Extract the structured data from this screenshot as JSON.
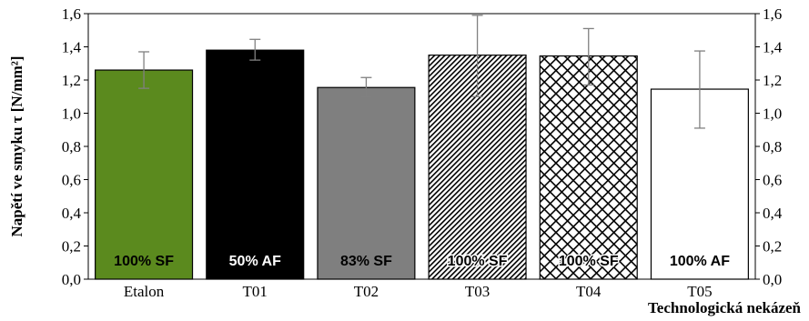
{
  "chart_data": {
    "type": "bar",
    "categories": [
      "Etalon",
      "T01",
      "T02",
      "T03",
      "T04",
      "T05"
    ],
    "values": [
      1.26,
      1.38,
      1.155,
      1.35,
      1.345,
      1.145
    ],
    "error_low": [
      1.15,
      1.32,
      1.1,
      1.1,
      1.17,
      0.91
    ],
    "error_high": [
      1.37,
      1.445,
      1.215,
      1.59,
      1.51,
      1.375
    ],
    "bar_labels": [
      "100% SF",
      "50% AF",
      "83% SF",
      "100% SF",
      "100% SF",
      "100% AF"
    ],
    "bar_fills": [
      "green",
      "black",
      "gray",
      "diagonal-hatch",
      "crosshatch",
      "white"
    ],
    "colors": {
      "green": "#5b8a1e",
      "black": "#000000",
      "gray": "#7f7f7f",
      "white": "#ffffff",
      "error_bar": "#808080"
    },
    "ylabel": "Napětí ve smyku τ [N/mm²]",
    "xlabel": "Technologická nekázeň",
    "ylim": [
      0,
      1.6
    ],
    "ytick_labels": [
      "0,0",
      "0,2",
      "0,4",
      "0,6",
      "0,8",
      "1,0",
      "1,2",
      "1,4",
      "1,6"
    ],
    "y_axis_both_sides": true,
    "grid": false
  }
}
